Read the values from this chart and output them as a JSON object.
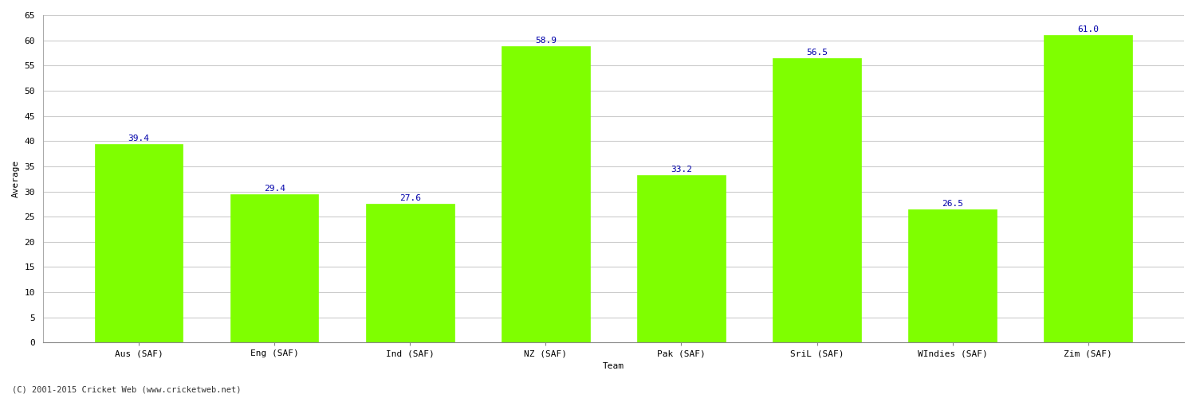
{
  "categories": [
    "Aus (SAF)",
    "Eng (SAF)",
    "Ind (SAF)",
    "NZ (SAF)",
    "Pak (SAF)",
    "SriL (SAF)",
    "WIndies (SAF)",
    "Zim (SAF)"
  ],
  "values": [
    39.4,
    29.4,
    27.6,
    58.9,
    33.2,
    56.5,
    26.5,
    61.0
  ],
  "bar_color": "#7fff00",
  "bar_edge_color": "#7fff00",
  "label_color": "#0000aa",
  "xlabel": "Team",
  "ylabel": "Average",
  "ylim": [
    0,
    65
  ],
  "yticks": [
    0,
    5,
    10,
    15,
    20,
    25,
    30,
    35,
    40,
    45,
    50,
    55,
    60,
    65
  ],
  "grid_color": "#cccccc",
  "background_color": "#ffffff",
  "footer_text": "(C) 2001-2015 Cricket Web (www.cricketweb.net)",
  "label_fontsize": 8,
  "axis_fontsize": 8,
  "bar_width": 0.65
}
